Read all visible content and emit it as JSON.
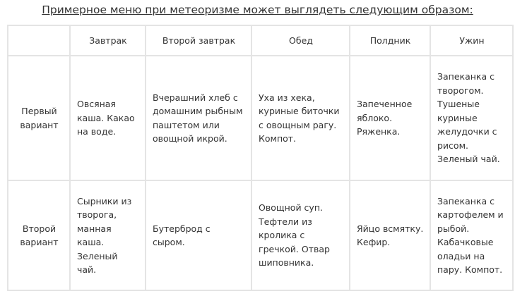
{
  "title": "Примерное меню при метеоризме может выглядеть следующим образом:",
  "table": {
    "headers": [
      "",
      "Завтрак",
      "Второй завтрак",
      "Обед",
      "Полдник",
      "Ужин"
    ],
    "rows": [
      {
        "label": "Первый вариант",
        "cells": [
          "Овсяная каша. Какао на воде.",
          "Вчерашний хлеб с домашним рыбным паштетом или овощной икрой.",
          "Уха из хека, куриные биточки с овощным рагу. Компот.",
          "Запеченное яблоко. Ряженка.",
          "Запеканка с творогом. Тушеные куриные желудочки с рисом. Зеленый чай."
        ]
      },
      {
        "label": "Второй вариант",
        "cells": [
          "Сырники из творога, манная каша. Зеленый чай.",
          "Бутерброд с сыром.",
          "Овощной суп. Тефтели из кролика с гречкой. Отвар шиповника.",
          "Яйцо всмятку. Кефир.",
          "Запеканка с картофелем и рыбой. Кабачковые оладьи на пару. Компот."
        ]
      }
    ]
  }
}
